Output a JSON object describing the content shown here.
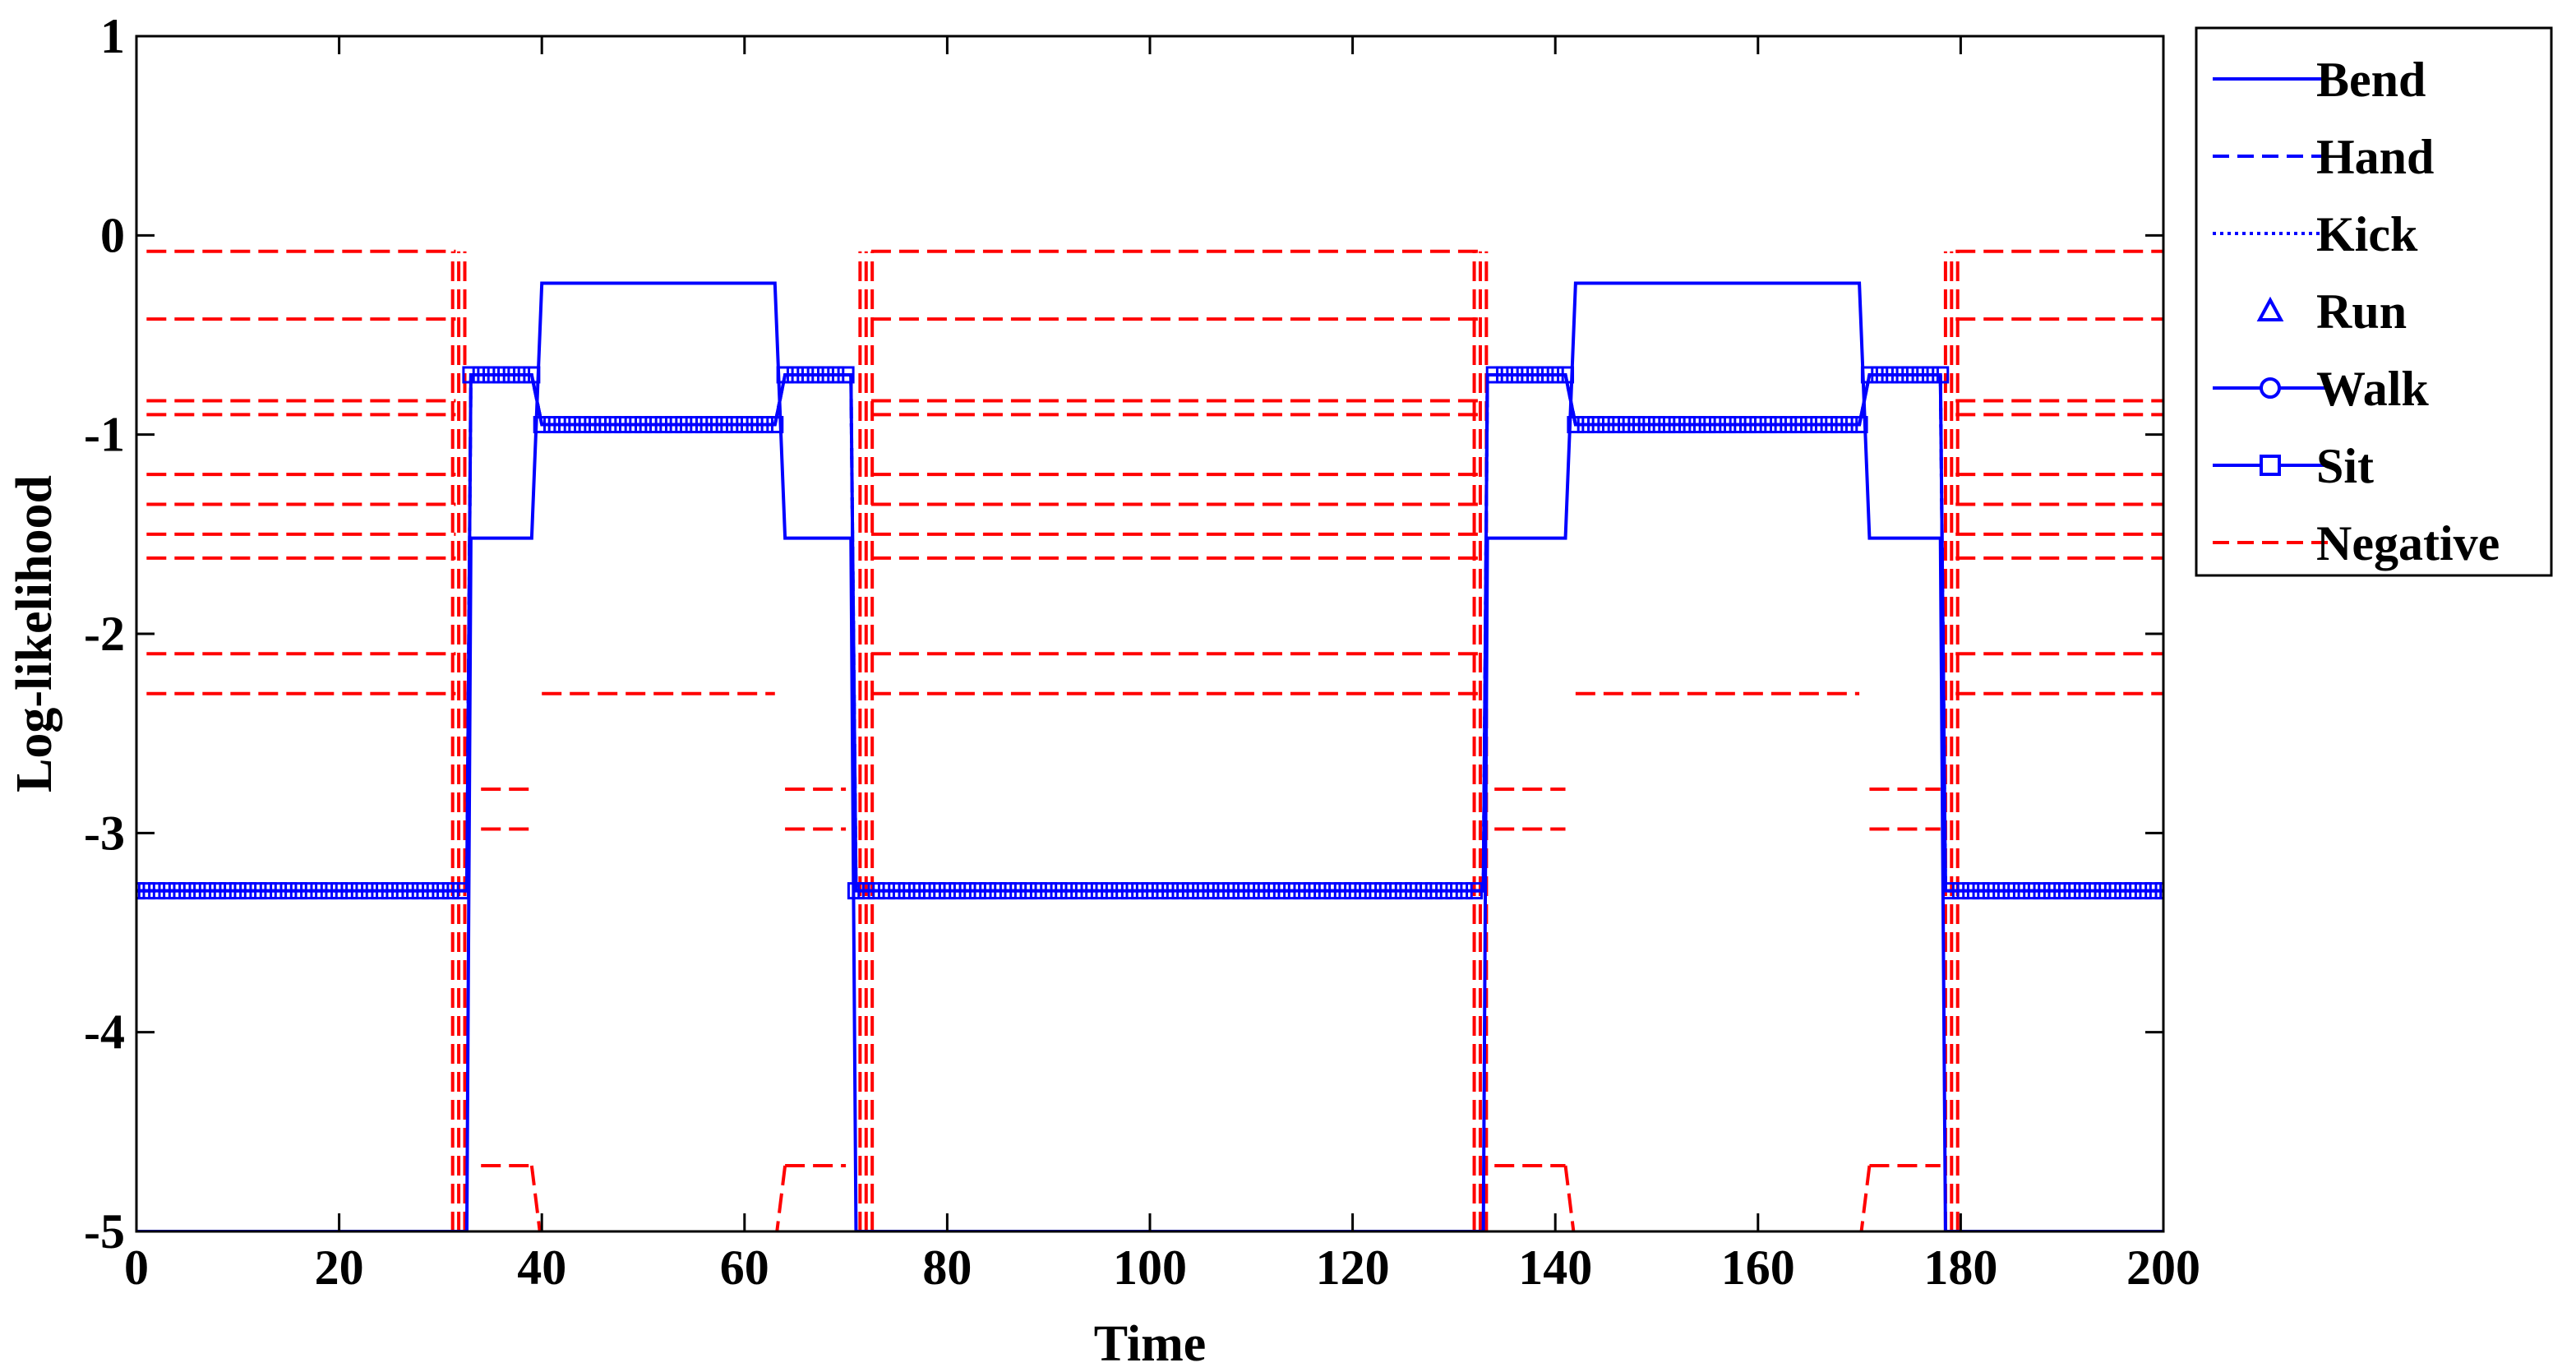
{
  "chart_data": {
    "type": "line",
    "xlabel": "Time",
    "ylabel": "Log-likelihood",
    "xlim": [
      0,
      200
    ],
    "ylim": [
      -5,
      1
    ],
    "xticks": [
      0,
      20,
      40,
      60,
      80,
      100,
      120,
      140,
      160,
      180,
      200
    ],
    "yticks": [
      -5,
      -4,
      -3,
      -2,
      -1,
      0,
      1
    ],
    "grid": false,
    "legend_position": "outside-right-top",
    "colors": {
      "positive": "#0000ff",
      "negative": "#ff0000"
    },
    "series": [
      {
        "name": "Bend",
        "style": "solid",
        "x": [
          0,
          32.6,
          33,
          39,
          40,
          63,
          64,
          70.5,
          71,
          132.9,
          133.3,
          141,
          142,
          170,
          171,
          178,
          178.5,
          200
        ],
        "y": [
          -5,
          -5,
          -1.52,
          -1.52,
          -0.24,
          -0.24,
          -1.52,
          -1.52,
          -5,
          -5,
          -1.52,
          -1.52,
          -0.24,
          -0.24,
          -1.52,
          -1.52,
          -5,
          -5
        ]
      },
      {
        "name": "Hand",
        "style": "dashed",
        "x": [
          0,
          32.6,
          33,
          39,
          40,
          63,
          64,
          70.5,
          71,
          132.9,
          133.3,
          141,
          142,
          170,
          171,
          178,
          178.5,
          200
        ],
        "y": [
          -3.29,
          -3.29,
          -0.7,
          -0.7,
          -0.95,
          -0.95,
          -0.7,
          -0.7,
          -3.29,
          -3.29,
          -0.7,
          -0.7,
          -0.95,
          -0.95,
          -0.7,
          -0.7,
          -3.29,
          -3.29
        ]
      },
      {
        "name": "Kick",
        "style": "dotted",
        "x": [
          0,
          32.6,
          33,
          39,
          40,
          63,
          64,
          70.5,
          71,
          132.9,
          133.3,
          141,
          142,
          170,
          171,
          178,
          178.5,
          200
        ],
        "y": [
          -3.29,
          -3.29,
          -0.7,
          -0.7,
          -0.95,
          -0.95,
          -0.7,
          -0.7,
          -3.29,
          -3.29,
          -0.7,
          -0.7,
          -0.95,
          -0.95,
          -0.7,
          -0.7,
          -3.29,
          -3.29
        ]
      },
      {
        "name": "Run",
        "style": "triangle",
        "x": [],
        "y": []
      },
      {
        "name": "Walk",
        "style": "solid-circle",
        "x": [],
        "y": []
      },
      {
        "name": "Sit",
        "style": "solid-square",
        "x": [
          0,
          32.6,
          33,
          39,
          40,
          63,
          64,
          70.5,
          71,
          132.9,
          133.3,
          141,
          142,
          170,
          171,
          178,
          178.5,
          200
        ],
        "y": [
          -3.29,
          -3.29,
          -0.7,
          -0.7,
          -0.95,
          -0.95,
          -0.7,
          -0.7,
          -3.29,
          -3.29,
          -0.7,
          -0.7,
          -0.95,
          -0.95,
          -0.7,
          -0.7,
          -3.29,
          -3.29
        ]
      },
      {
        "name": "Negative",
        "style": "dashed",
        "segments": [
          {
            "x": [
              1,
              31.5
            ],
            "y": -0.08
          },
          {
            "x": [
              1,
              31.5
            ],
            "y": -0.42
          },
          {
            "x": [
              1,
              31.5
            ],
            "y": -0.83
          },
          {
            "x": [
              1,
              31.5
            ],
            "y": -0.9
          },
          {
            "x": [
              1,
              31.5
            ],
            "y": -1.2
          },
          {
            "x": [
              1,
              31.5
            ],
            "y": -1.35
          },
          {
            "x": [
              1,
              31.5
            ],
            "y": -1.5
          },
          {
            "x": [
              1,
              31.5
            ],
            "y": -1.62
          },
          {
            "x": [
              1,
              31.5
            ],
            "y": -2.1
          },
          {
            "x": [
              1,
              31.5
            ],
            "y": -2.3
          },
          {
            "x": [
              34,
              39
            ],
            "y": -2.78
          },
          {
            "x": [
              34,
              39
            ],
            "y": -2.98
          },
          {
            "x": [
              34,
              39
            ],
            "y": -4.67
          },
          {
            "x": [
              40,
              63
            ],
            "y": -2.3
          },
          {
            "x": [
              64,
              70
            ],
            "y": -2.78
          },
          {
            "x": [
              64,
              70
            ],
            "y": -2.98
          },
          {
            "x": [
              64,
              70
            ],
            "y": -4.67
          },
          {
            "x": [
              72.5,
              132.5
            ],
            "y": -0.08
          },
          {
            "x": [
              72.5,
              132.5
            ],
            "y": -0.42
          },
          {
            "x": [
              72.5,
              132.5
            ],
            "y": -0.83
          },
          {
            "x": [
              72.5,
              132.5
            ],
            "y": -0.9
          },
          {
            "x": [
              72.5,
              132.5
            ],
            "y": -1.2
          },
          {
            "x": [
              72.5,
              132.5
            ],
            "y": -1.35
          },
          {
            "x": [
              72.5,
              132.5
            ],
            "y": -1.5
          },
          {
            "x": [
              72.5,
              132.5
            ],
            "y": -1.62
          },
          {
            "x": [
              72.5,
              132.5
            ],
            "y": -2.1
          },
          {
            "x": [
              72.5,
              132.5
            ],
            "y": -2.3
          },
          {
            "x": [
              134,
              141
            ],
            "y": -2.78
          },
          {
            "x": [
              134,
              141
            ],
            "y": -2.98
          },
          {
            "x": [
              134,
              141
            ],
            "y": -4.67
          },
          {
            "x": [
              142,
              170
            ],
            "y": -2.3
          },
          {
            "x": [
              171,
              178
            ],
            "y": -2.78
          },
          {
            "x": [
              171,
              178
            ],
            "y": -2.98
          },
          {
            "x": [
              171,
              178
            ],
            "y": -4.67
          },
          {
            "x": [
              179.5,
              200
            ],
            "y": -0.08
          },
          {
            "x": [
              179.5,
              200
            ],
            "y": -0.42
          },
          {
            "x": [
              179.5,
              200
            ],
            "y": -0.83
          },
          {
            "x": [
              179.5,
              200
            ],
            "y": -0.9
          },
          {
            "x": [
              179.5,
              200
            ],
            "y": -1.2
          },
          {
            "x": [
              179.5,
              200
            ],
            "y": -1.35
          },
          {
            "x": [
              179.5,
              200
            ],
            "y": -1.5
          },
          {
            "x": [
              179.5,
              200
            ],
            "y": -1.62
          },
          {
            "x": [
              179.5,
              200
            ],
            "y": -2.1
          },
          {
            "x": [
              179.5,
              200
            ],
            "y": -2.3
          }
        ],
        "verticals": [
          {
            "x": 31.8,
            "y": [
              -5,
              -0.08
            ]
          },
          {
            "x": 72,
            "y": [
              -5,
              -0.08
            ]
          },
          {
            "x": 132.6,
            "y": [
              -5,
              -0.08
            ]
          },
          {
            "x": 179.1,
            "y": [
              -5,
              -0.08
            ]
          }
        ],
        "short_drops": [
          {
            "x": [
              39,
              39.8
            ],
            "y": [
              -4.67,
              -5
            ]
          },
          {
            "x": [
              64,
              63.2
            ],
            "y": [
              -4.67,
              -5
            ]
          },
          {
            "x": [
              141,
              141.8
            ],
            "y": [
              -4.67,
              -5
            ]
          },
          {
            "x": [
              171,
              170.2
            ],
            "y": [
              -4.67,
              -5
            ]
          }
        ]
      }
    ]
  }
}
